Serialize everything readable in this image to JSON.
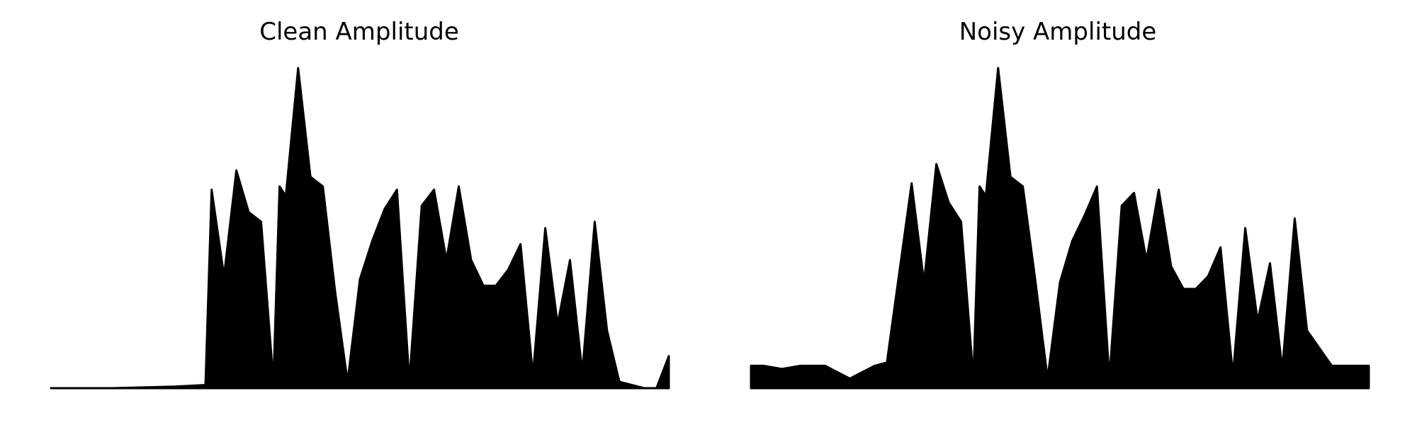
{
  "figure": {
    "background": "#ffffff",
    "line_color": "#000000"
  },
  "chart_data": [
    {
      "type": "area",
      "title": "Clean Amplitude",
      "xlabel": "",
      "ylabel": "",
      "axes_visible": false,
      "grid": false,
      "x_range": [
        0,
        1
      ],
      "ylim": [
        0,
        1
      ],
      "x": [
        0.0,
        0.1,
        0.2,
        0.25,
        0.26,
        0.28,
        0.3,
        0.32,
        0.34,
        0.36,
        0.37,
        0.38,
        0.4,
        0.42,
        0.44,
        0.46,
        0.48,
        0.5,
        0.52,
        0.54,
        0.56,
        0.58,
        0.6,
        0.62,
        0.64,
        0.66,
        0.68,
        0.7,
        0.72,
        0.74,
        0.76,
        0.78,
        0.8,
        0.82,
        0.84,
        0.86,
        0.88,
        0.9,
        0.92,
        0.94,
        0.96,
        0.98,
        1.0
      ],
      "values": [
        0.0,
        0.0,
        0.005,
        0.01,
        0.62,
        0.35,
        0.68,
        0.55,
        0.52,
        0.02,
        0.63,
        0.6,
        1.0,
        0.66,
        0.63,
        0.3,
        0.02,
        0.34,
        0.46,
        0.56,
        0.62,
        0.02,
        0.57,
        0.62,
        0.4,
        0.63,
        0.4,
        0.32,
        0.32,
        0.37,
        0.45,
        0.04,
        0.5,
        0.2,
        0.4,
        0.05,
        0.52,
        0.18,
        0.02,
        0.01,
        0.0,
        0.0,
        0.1
      ]
    },
    {
      "type": "area",
      "title": "Noisy Amplitude",
      "xlabel": "",
      "ylabel": "",
      "axes_visible": false,
      "grid": false,
      "x_range": [
        0,
        1
      ],
      "ylim": [
        0,
        1
      ],
      "x": [
        0.0,
        0.02,
        0.05,
        0.08,
        0.12,
        0.16,
        0.2,
        0.22,
        0.26,
        0.28,
        0.3,
        0.32,
        0.34,
        0.36,
        0.37,
        0.38,
        0.4,
        0.42,
        0.44,
        0.46,
        0.48,
        0.5,
        0.52,
        0.54,
        0.56,
        0.58,
        0.6,
        0.62,
        0.64,
        0.66,
        0.68,
        0.7,
        0.72,
        0.74,
        0.76,
        0.78,
        0.8,
        0.82,
        0.84,
        0.86,
        0.88,
        0.9,
        0.94,
        1.0
      ],
      "values": [
        0.07,
        0.07,
        0.06,
        0.07,
        0.07,
        0.03,
        0.07,
        0.08,
        0.64,
        0.33,
        0.7,
        0.58,
        0.52,
        0.03,
        0.63,
        0.6,
        1.0,
        0.66,
        0.63,
        0.34,
        0.03,
        0.33,
        0.46,
        0.54,
        0.63,
        0.03,
        0.57,
        0.61,
        0.4,
        0.62,
        0.38,
        0.31,
        0.31,
        0.35,
        0.44,
        0.04,
        0.5,
        0.21,
        0.39,
        0.06,
        0.53,
        0.18,
        0.07,
        0.07
      ]
    }
  ]
}
